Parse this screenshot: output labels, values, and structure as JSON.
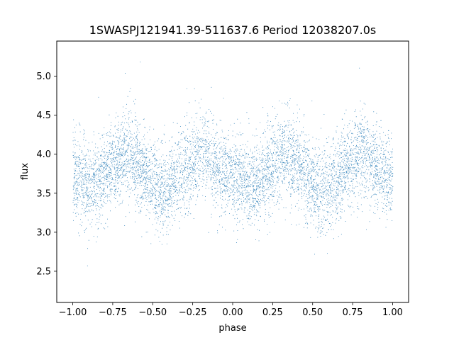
{
  "chart_data": {
    "type": "scatter",
    "title": "1SWASPJ121941.39-511637.6 Period 12038207.0s",
    "xlabel": "phase",
    "ylabel": "flux",
    "xlim": [
      -1.1,
      1.1
    ],
    "ylim": [
      2.1,
      5.45
    ],
    "x_ticks": [
      -1.0,
      -0.75,
      -0.5,
      -0.25,
      0.0,
      0.25,
      0.5,
      0.75,
      1.0
    ],
    "x_tick_labels": [
      "−1.00",
      "−0.75",
      "−0.50",
      "−0.25",
      "0.00",
      "0.25",
      "0.50",
      "0.75",
      "1.00"
    ],
    "y_ticks": [
      2.5,
      3.0,
      3.5,
      4.0,
      4.5,
      5.0
    ],
    "y_tick_labels": [
      "2.5",
      "3.0",
      "3.5",
      "4.0",
      "4.5",
      "5.0"
    ],
    "grid": false,
    "legend": "none",
    "marker_color": "#1f77b4",
    "folded_profile": {
      "description_points_phase": [
        0.0,
        0.05,
        0.1,
        0.15,
        0.2,
        0.25,
        0.3,
        0.35,
        0.4,
        0.45,
        0.5,
        0.55,
        0.6,
        0.65,
        0.7,
        0.75,
        0.8,
        0.85,
        0.9,
        0.95,
        1.0
      ],
      "median_flux": [
        3.72,
        3.7,
        3.62,
        3.65,
        3.78,
        3.85,
        3.95,
        4.02,
        3.9,
        3.78,
        3.62,
        3.5,
        3.58,
        3.72,
        3.8,
        3.9,
        4.05,
        3.95,
        3.85,
        3.76,
        3.72
      ],
      "scatter_sigma": 0.27,
      "phase_range": [
        -1.0,
        1.0
      ]
    }
  }
}
